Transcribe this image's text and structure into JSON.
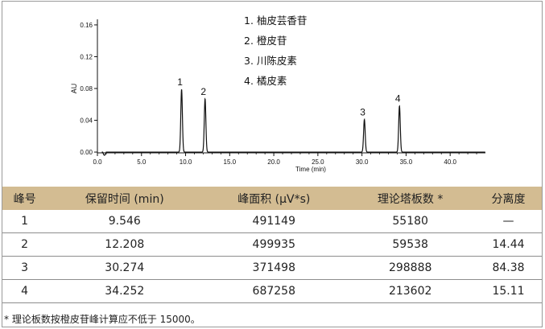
{
  "chart_data": {
    "type": "line",
    "xlabel": "Time (min)",
    "ylabel": "AU",
    "xlim": [
      0,
      44
    ],
    "ylim": [
      -0.005,
      0.165
    ],
    "x_ticks": [
      "0.0",
      "5.0",
      "10.0",
      "15.0",
      "20.0",
      "25.0",
      "30.0",
      "35.0",
      "40.0"
    ],
    "y_ticks": [
      "0.00",
      "0.04",
      "0.08",
      "0.12",
      "0.16"
    ],
    "series": [
      {
        "peaks": [
          {
            "label": "1",
            "time": 9.546,
            "height": 0.079
          },
          {
            "label": "2",
            "time": 12.208,
            "height": 0.067
          },
          {
            "label": "3",
            "time": 30.274,
            "height": 0.041
          },
          {
            "label": "4",
            "time": 34.252,
            "height": 0.058
          }
        ]
      }
    ],
    "annotations": [
      "1.  柚皮芸香苷",
      "2.  橙皮苷",
      "3.  川陈皮素",
      "4.  橘皮素"
    ]
  },
  "table": {
    "headers": [
      "峰号",
      "保留时间 (min)",
      "峰面积 (µV*s)",
      "理论塔板数 *",
      "分离度"
    ],
    "rows": [
      [
        "1",
        "9.546",
        "491149",
        "55180",
        "—"
      ],
      [
        "2",
        "12.208",
        "499935",
        "59538",
        "14.44"
      ],
      [
        "3",
        "30.274",
        "371498",
        "298888",
        "84.38"
      ],
      [
        "4",
        "34.252",
        "687258",
        "213602",
        "15.11"
      ]
    ]
  },
  "footnote": "* 理论板数按橙皮苷峰计算应不低于 15000。",
  "colors": {
    "header_bg": "#d3bc92",
    "trace": "#111111"
  }
}
